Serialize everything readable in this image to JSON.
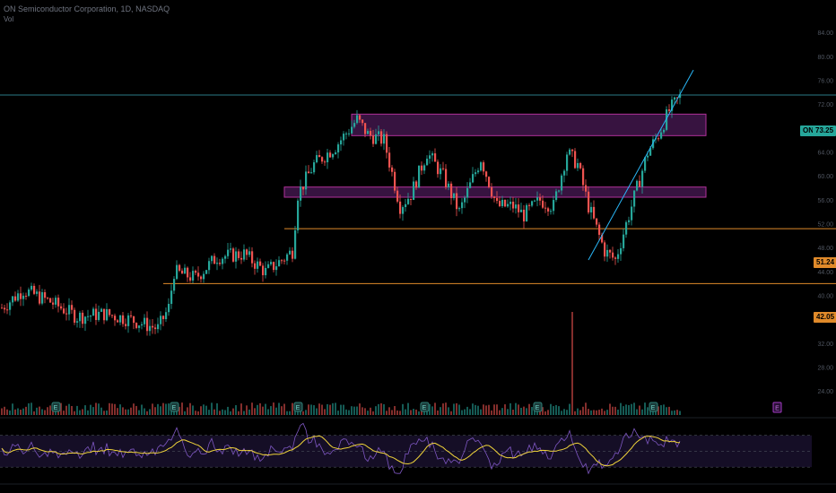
{
  "header": {
    "title": "ON Semiconductor Corporation, 1D, NASDAQ",
    "subtitle": "Vol"
  },
  "price_tags": {
    "symbol": "ON",
    "last": "73.25",
    "level_upper": "51.24",
    "level_lower": "42.05"
  },
  "colors": {
    "up": "#26a69a",
    "down": "#ef5350",
    "zone_fill": "#4a1a55",
    "zone_border": "#b0309a",
    "level_line": "#e08a2a",
    "trend_line": "#29b6f6",
    "rsi": "#7e57c2",
    "rsi_ma": "#f0d43a"
  },
  "chart_data": {
    "type": "candlestick",
    "symbol": "ON",
    "timeframe": "1D",
    "ylim": [
      22,
      88
    ],
    "y_ticks": [
      "84.00",
      "80.00",
      "76.00",
      "72.00",
      "68.00",
      "64.00",
      "60.00",
      "56.00",
      "52.00",
      "48.00",
      "44.00",
      "40.00",
      "36.00",
      "32.00",
      "28.00",
      "24.00"
    ],
    "last_price": 73.25,
    "horizontal_levels": [
      {
        "price": 73.6,
        "style": "thin",
        "color": "trend"
      },
      {
        "price": 51.24,
        "start_index": 105
      },
      {
        "price": 42.05,
        "start_index": 60
      }
    ],
    "zones": [
      {
        "from_index": 130,
        "to_index": 255,
        "low": 66.8,
        "high": 70.4
      },
      {
        "from_index": 105,
        "to_index": 255,
        "low": 56.5,
        "high": 58.2
      }
    ],
    "trendline": [
      {
        "index": 218,
        "price": 46.0
      },
      {
        "index": 245,
        "price": 68.0
      }
    ],
    "volume_spike_index": 212,
    "rsi": {
      "levels": [
        70,
        50,
        30
      ]
    }
  }
}
